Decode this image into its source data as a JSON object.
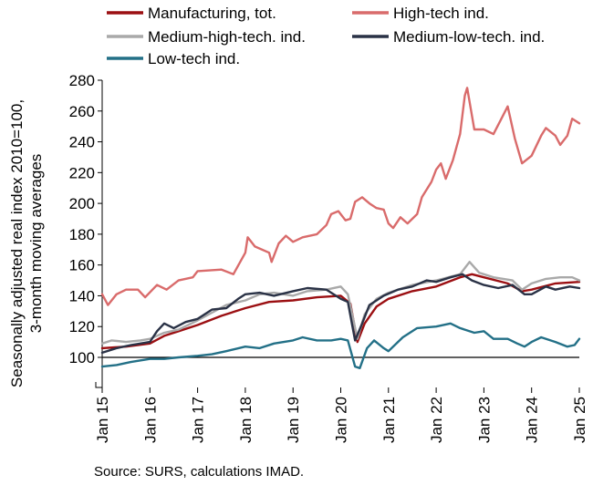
{
  "chart_data": {
    "type": "line",
    "ylabel": "Seasonally adjusted real  index 2010=100,\n3-month moving averages",
    "ylim": [
      100,
      280
    ],
    "yticks": [
      100,
      120,
      140,
      160,
      180,
      200,
      220,
      240,
      260,
      280
    ],
    "ytick_labels": [
      "100",
      "120",
      "140",
      "160",
      "180",
      "200",
      "220",
      "240",
      "260",
      "280"
    ],
    "axis_break_label": "~",
    "xlim": [
      2015,
      2025
    ],
    "xticks": [
      2015,
      2016,
      2017,
      2018,
      2019,
      2020,
      2021,
      2022,
      2023,
      2024,
      2025
    ],
    "xtick_labels": [
      "Jan 15",
      "Jan 16",
      "Jan 17",
      "Jan 18",
      "Jan 19",
      "Jan 20",
      "Jan 21",
      "Jan 22",
      "Jan 23",
      "Jan 24",
      "Jan 25"
    ],
    "grid": false,
    "legend_position": "top",
    "series": [
      {
        "name": "Manufacturing, tot.",
        "color": "#9b0f12",
        "points": [
          [
            2015.0,
            106
          ],
          [
            2015.5,
            107
          ],
          [
            2016.0,
            109
          ],
          [
            2016.3,
            114
          ],
          [
            2016.6,
            117
          ],
          [
            2017.0,
            121
          ],
          [
            2017.5,
            127
          ],
          [
            2018.0,
            132
          ],
          [
            2018.5,
            136
          ],
          [
            2019.0,
            137
          ],
          [
            2019.5,
            139
          ],
          [
            2020.0,
            140
          ],
          [
            2020.2,
            135
          ],
          [
            2020.35,
            110
          ],
          [
            2020.5,
            122
          ],
          [
            2020.75,
            133
          ],
          [
            2021.0,
            138
          ],
          [
            2021.5,
            143
          ],
          [
            2022.0,
            146
          ],
          [
            2022.5,
            152
          ],
          [
            2022.75,
            154
          ],
          [
            2023.0,
            152
          ],
          [
            2023.5,
            148
          ],
          [
            2023.8,
            143
          ],
          [
            2024.0,
            144
          ],
          [
            2024.5,
            148
          ],
          [
            2025.0,
            149
          ]
        ]
      },
      {
        "name": "High-tech ind.",
        "color": "#d96b6b",
        "points": [
          [
            2015.0,
            141
          ],
          [
            2015.12,
            134
          ],
          [
            2015.3,
            141
          ],
          [
            2015.5,
            144
          ],
          [
            2015.75,
            144
          ],
          [
            2015.9,
            139
          ],
          [
            2016.15,
            147
          ],
          [
            2016.35,
            144
          ],
          [
            2016.6,
            150
          ],
          [
            2016.9,
            152
          ],
          [
            2017.0,
            156
          ],
          [
            2017.5,
            157
          ],
          [
            2017.75,
            154
          ],
          [
            2018.0,
            168
          ],
          [
            2018.05,
            178
          ],
          [
            2018.2,
            172
          ],
          [
            2018.5,
            168
          ],
          [
            2018.55,
            162
          ],
          [
            2018.7,
            174
          ],
          [
            2018.85,
            179
          ],
          [
            2019.0,
            175
          ],
          [
            2019.2,
            178
          ],
          [
            2019.5,
            180
          ],
          [
            2019.7,
            186
          ],
          [
            2019.8,
            193
          ],
          [
            2019.95,
            195
          ],
          [
            2020.1,
            189
          ],
          [
            2020.2,
            190
          ],
          [
            2020.3,
            201
          ],
          [
            2020.45,
            204
          ],
          [
            2020.6,
            200
          ],
          [
            2020.75,
            197
          ],
          [
            2020.9,
            196
          ],
          [
            2021.0,
            187
          ],
          [
            2021.1,
            184
          ],
          [
            2021.25,
            191
          ],
          [
            2021.4,
            187
          ],
          [
            2021.6,
            193
          ],
          [
            2021.7,
            204
          ],
          [
            2021.9,
            214
          ],
          [
            2022.0,
            222
          ],
          [
            2022.1,
            226
          ],
          [
            2022.2,
            216
          ],
          [
            2022.35,
            228
          ],
          [
            2022.5,
            245
          ],
          [
            2022.6,
            270
          ],
          [
            2022.65,
            275
          ],
          [
            2022.8,
            248
          ],
          [
            2023.0,
            248
          ],
          [
            2023.2,
            245
          ],
          [
            2023.35,
            254
          ],
          [
            2023.5,
            263
          ],
          [
            2023.65,
            242
          ],
          [
            2023.8,
            226
          ],
          [
            2024.0,
            231
          ],
          [
            2024.2,
            244
          ],
          [
            2024.3,
            249
          ],
          [
            2024.5,
            244
          ],
          [
            2024.6,
            238
          ],
          [
            2024.75,
            244
          ],
          [
            2024.85,
            255
          ],
          [
            2025.0,
            252
          ]
        ]
      },
      {
        "name": "Medium-high-tech. ind.",
        "color": "#a9a9a9",
        "points": [
          [
            2015.0,
            109
          ],
          [
            2015.2,
            111
          ],
          [
            2015.5,
            110
          ],
          [
            2015.8,
            111
          ],
          [
            2016.0,
            112
          ],
          [
            2016.3,
            116
          ],
          [
            2016.6,
            118
          ],
          [
            2017.0,
            124
          ],
          [
            2017.3,
            129
          ],
          [
            2017.6,
            134
          ],
          [
            2018.0,
            137
          ],
          [
            2018.3,
            141
          ],
          [
            2018.6,
            142
          ],
          [
            2019.0,
            140
          ],
          [
            2019.3,
            143
          ],
          [
            2019.7,
            144
          ],
          [
            2020.0,
            146
          ],
          [
            2020.15,
            141
          ],
          [
            2020.35,
            112
          ],
          [
            2020.5,
            128
          ],
          [
            2020.75,
            138
          ],
          [
            2021.0,
            142
          ],
          [
            2021.5,
            147
          ],
          [
            2022.0,
            150
          ],
          [
            2022.5,
            154
          ],
          [
            2022.7,
            162
          ],
          [
            2022.9,
            155
          ],
          [
            2023.2,
            152
          ],
          [
            2023.6,
            150
          ],
          [
            2023.8,
            144
          ],
          [
            2024.0,
            148
          ],
          [
            2024.3,
            151
          ],
          [
            2024.6,
            152
          ],
          [
            2024.85,
            152
          ],
          [
            2025.0,
            150
          ]
        ]
      },
      {
        "name": "Medium-low-tech. ind.",
        "color": "#2a3246",
        "points": [
          [
            2015.0,
            103
          ],
          [
            2015.3,
            106
          ],
          [
            2015.6,
            108
          ],
          [
            2016.0,
            110
          ],
          [
            2016.15,
            117
          ],
          [
            2016.3,
            122
          ],
          [
            2016.5,
            119
          ],
          [
            2016.75,
            123
          ],
          [
            2017.0,
            125
          ],
          [
            2017.3,
            131
          ],
          [
            2017.6,
            132
          ],
          [
            2017.85,
            138
          ],
          [
            2018.0,
            141
          ],
          [
            2018.3,
            142
          ],
          [
            2018.6,
            140
          ],
          [
            2019.0,
            143
          ],
          [
            2019.3,
            145
          ],
          [
            2019.7,
            144
          ],
          [
            2020.0,
            138
          ],
          [
            2020.15,
            136
          ],
          [
            2020.3,
            111
          ],
          [
            2020.45,
            122
          ],
          [
            2020.6,
            134
          ],
          [
            2020.9,
            140
          ],
          [
            2021.2,
            144
          ],
          [
            2021.5,
            146
          ],
          [
            2021.8,
            150
          ],
          [
            2022.0,
            149
          ],
          [
            2022.3,
            152
          ],
          [
            2022.55,
            154
          ],
          [
            2022.75,
            150
          ],
          [
            2023.0,
            147
          ],
          [
            2023.3,
            145
          ],
          [
            2023.6,
            147
          ],
          [
            2023.85,
            141
          ],
          [
            2024.0,
            141
          ],
          [
            2024.3,
            146
          ],
          [
            2024.5,
            144
          ],
          [
            2024.8,
            146
          ],
          [
            2025.0,
            145
          ]
        ]
      },
      {
        "name": "Low-tech ind.",
        "color": "#237087",
        "points": [
          [
            2015.0,
            94
          ],
          [
            2015.3,
            95
          ],
          [
            2015.6,
            97
          ],
          [
            2016.0,
            99
          ],
          [
            2016.3,
            99
          ],
          [
            2016.6,
            100
          ],
          [
            2017.0,
            101
          ],
          [
            2017.3,
            102
          ],
          [
            2017.6,
            104
          ],
          [
            2018.0,
            107
          ],
          [
            2018.3,
            106
          ],
          [
            2018.6,
            109
          ],
          [
            2019.0,
            111
          ],
          [
            2019.2,
            113
          ],
          [
            2019.5,
            111
          ],
          [
            2019.8,
            111
          ],
          [
            2020.0,
            112
          ],
          [
            2020.15,
            111
          ],
          [
            2020.3,
            94
          ],
          [
            2020.4,
            93
          ],
          [
            2020.55,
            106
          ],
          [
            2020.7,
            111
          ],
          [
            2020.9,
            106
          ],
          [
            2021.0,
            104
          ],
          [
            2021.3,
            113
          ],
          [
            2021.6,
            119
          ],
          [
            2022.0,
            120
          ],
          [
            2022.3,
            122
          ],
          [
            2022.5,
            119
          ],
          [
            2022.8,
            116
          ],
          [
            2023.0,
            117
          ],
          [
            2023.2,
            112
          ],
          [
            2023.5,
            112
          ],
          [
            2023.7,
            109
          ],
          [
            2023.85,
            107
          ],
          [
            2024.0,
            110
          ],
          [
            2024.2,
            113
          ],
          [
            2024.5,
            110
          ],
          [
            2024.75,
            107
          ],
          [
            2024.9,
            108
          ],
          [
            2025.0,
            112
          ]
        ]
      }
    ]
  },
  "source_text": "Source: SURS, calculations IMAD."
}
